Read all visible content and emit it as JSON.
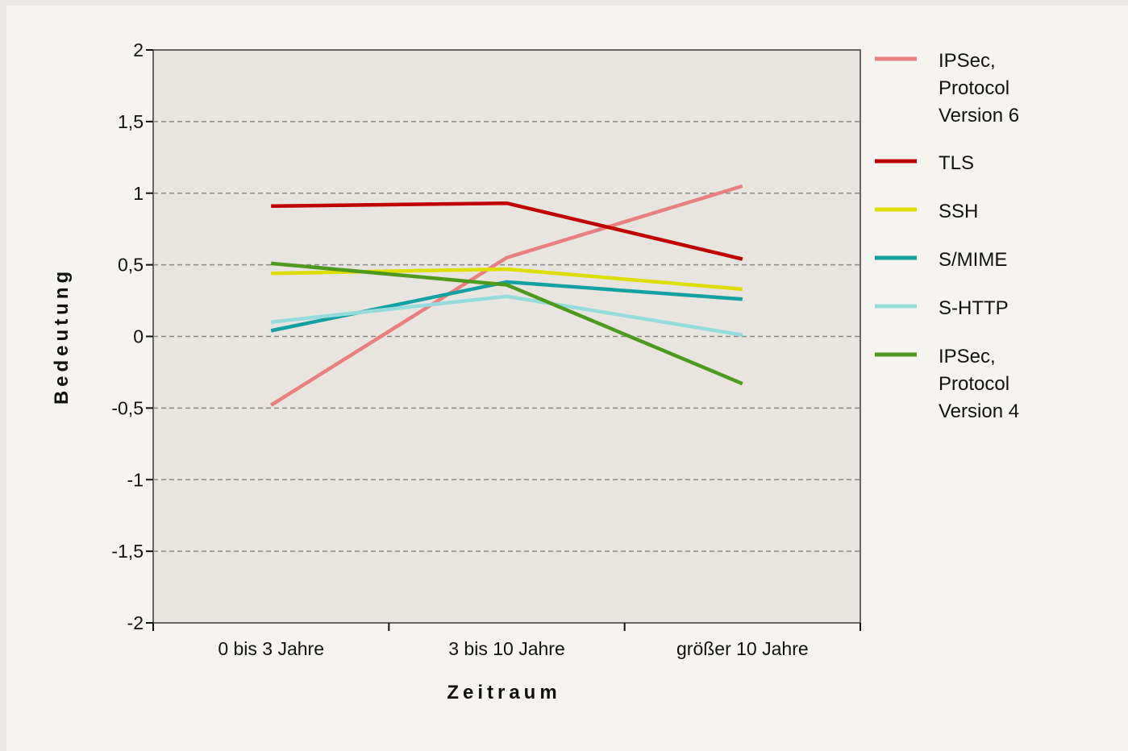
{
  "chart_data": {
    "type": "line",
    "xlabel": "Zeitraum",
    "ylabel": "Bedeutung",
    "categories": [
      "0 bis 3 Jahre",
      "3 bis 10 Jahre",
      "größer 10 Jahre"
    ],
    "ylim": [
      -2,
      2
    ],
    "yticks": [
      2,
      1.5,
      1,
      0.5,
      0,
      -0.5,
      -1,
      -1.5,
      -2
    ],
    "ytick_labels": [
      "2",
      "1,5",
      "1",
      "0,5",
      "0",
      "-0,5",
      "-1",
      "-1,5",
      "-2"
    ],
    "grid": true,
    "legend_position": "right",
    "series": [
      {
        "name": "IPSec, Protocol Version 6",
        "legend_lines": [
          "IPSec,",
          "Protocol",
          "Version 6"
        ],
        "color": "#e88080",
        "values": [
          -0.48,
          0.55,
          1.05
        ]
      },
      {
        "name": "TLS",
        "legend_lines": [
          "TLS"
        ],
        "color": "#c00000",
        "values": [
          0.91,
          0.93,
          0.54
        ]
      },
      {
        "name": "SSH",
        "legend_lines": [
          "SSH"
        ],
        "color": "#dede00",
        "values": [
          0.44,
          0.47,
          0.33
        ]
      },
      {
        "name": "S/MIME",
        "legend_lines": [
          "S/MIME"
        ],
        "color": "#14a0a0",
        "values": [
          0.04,
          0.38,
          0.26
        ]
      },
      {
        "name": "S-HTTP",
        "legend_lines": [
          "S-HTTP"
        ],
        "color": "#96dcdc",
        "values": [
          0.1,
          0.28,
          0.01
        ]
      },
      {
        "name": "IPSec, Protocol Version 4",
        "legend_lines": [
          "IPSec,",
          "Protocol",
          "Version 4"
        ],
        "color": "#4e9a1e",
        "values": [
          0.51,
          0.36,
          -0.33
        ]
      }
    ]
  }
}
